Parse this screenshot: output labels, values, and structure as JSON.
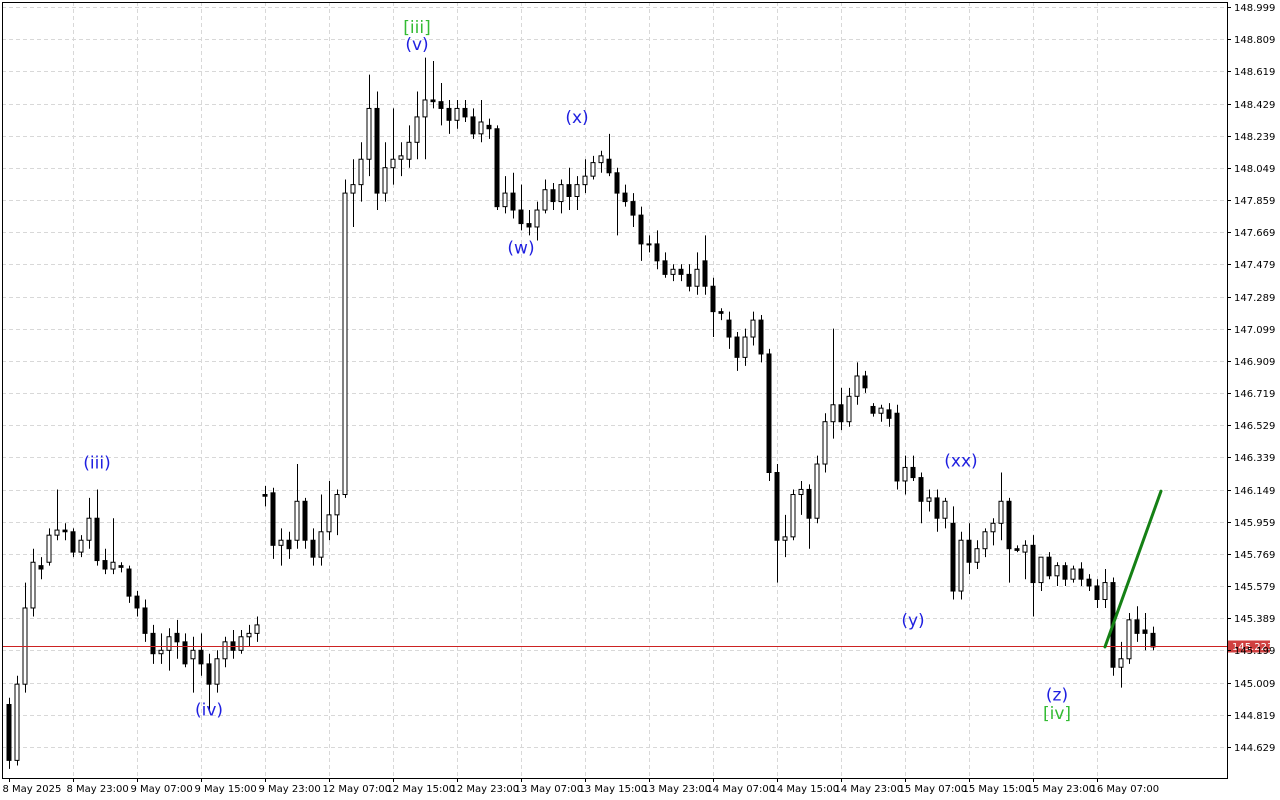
{
  "chart_data": {
    "type": "candlestick",
    "grid": true,
    "colors": {
      "background": "#ffffff",
      "grid": "#d8d8d8",
      "candle": "#000000",
      "bid_line": "#cc2222",
      "bid_tag": "#d04040",
      "primary_label": "#1f1fe0",
      "intermediate_label": "#33bb33",
      "forecast": "#158015"
    },
    "ylim": [
      144.5,
      149.0
    ],
    "y_ticks": [
      "148.999",
      "148.809",
      "148.619",
      "148.429",
      "148.239",
      "148.049",
      "147.859",
      "147.669",
      "147.479",
      "147.289",
      "147.099",
      "146.909",
      "146.719",
      "146.529",
      "146.339",
      "146.149",
      "145.959",
      "145.769",
      "145.579",
      "145.389",
      "145.199",
      "145.009",
      "144.819",
      "144.629"
    ],
    "x_ticks": [
      {
        "label": "8 May 2025",
        "index": 0
      },
      {
        "label": "8 May 23:00",
        "index": 8
      },
      {
        "label": "9 May 07:00",
        "index": 16
      },
      {
        "label": "9 May 15:00",
        "index": 24
      },
      {
        "label": "9 May 23:00",
        "index": 32
      },
      {
        "label": "12 May 07:00",
        "index": 40
      },
      {
        "label": "12 May 15:00",
        "index": 48
      },
      {
        "label": "12 May 23:00",
        "index": 56
      },
      {
        "label": "13 May 07:00",
        "index": 64
      },
      {
        "label": "13 May 15:00",
        "index": 72
      },
      {
        "label": "13 May 23:00",
        "index": 80
      },
      {
        "label": "14 May 07:00",
        "index": 88
      },
      {
        "label": "14 May 15:00",
        "index": 96
      },
      {
        "label": "14 May 23:00",
        "index": 104
      },
      {
        "label": "15 May 07:00",
        "index": 112
      },
      {
        "label": "15 May 15:00",
        "index": 120
      },
      {
        "label": "15 May 23:00",
        "index": 128
      },
      {
        "label": "16 May 07:00",
        "index": 136
      }
    ],
    "current_price": "145.223",
    "candles": [
      {
        "o": 144.88,
        "h": 144.92,
        "l": 144.5,
        "c": 144.55
      },
      {
        "o": 144.55,
        "h": 145.05,
        "l": 144.52,
        "c": 145.0
      },
      {
        "o": 145.0,
        "h": 145.6,
        "l": 144.95,
        "c": 145.45
      },
      {
        "o": 145.45,
        "h": 145.8,
        "l": 145.4,
        "c": 145.72
      },
      {
        "o": 145.7,
        "h": 145.75,
        "l": 145.62,
        "c": 145.68
      },
      {
        "o": 145.72,
        "h": 145.92,
        "l": 145.7,
        "c": 145.88
      },
      {
        "o": 145.88,
        "h": 146.15,
        "l": 145.85,
        "c": 145.91
      },
      {
        "o": 145.91,
        "h": 145.95,
        "l": 145.85,
        "c": 145.9
      },
      {
        "o": 145.9,
        "h": 145.92,
        "l": 145.75,
        "c": 145.78
      },
      {
        "o": 145.78,
        "h": 145.88,
        "l": 145.75,
        "c": 145.85
      },
      {
        "o": 145.85,
        "h": 146.1,
        "l": 145.8,
        "c": 145.98
      },
      {
        "o": 145.98,
        "h": 146.15,
        "l": 145.7,
        "c": 145.73
      },
      {
        "o": 145.73,
        "h": 145.8,
        "l": 145.65,
        "c": 145.68
      },
      {
        "o": 145.68,
        "h": 145.98,
        "l": 145.65,
        "c": 145.72
      },
      {
        "o": 145.7,
        "h": 145.72,
        "l": 145.66,
        "c": 145.69
      },
      {
        "o": 145.68,
        "h": 145.7,
        "l": 145.48,
        "c": 145.52
      },
      {
        "o": 145.52,
        "h": 145.55,
        "l": 145.4,
        "c": 145.45
      },
      {
        "o": 145.45,
        "h": 145.5,
        "l": 145.25,
        "c": 145.3
      },
      {
        "o": 145.3,
        "h": 145.35,
        "l": 145.12,
        "c": 145.18
      },
      {
        "o": 145.18,
        "h": 145.3,
        "l": 145.12,
        "c": 145.2
      },
      {
        "o": 145.2,
        "h": 145.33,
        "l": 145.08,
        "c": 145.28
      },
      {
        "o": 145.3,
        "h": 145.38,
        "l": 145.15,
        "c": 145.25
      },
      {
        "o": 145.25,
        "h": 145.3,
        "l": 145.1,
        "c": 145.12
      },
      {
        "o": 145.15,
        "h": 145.28,
        "l": 144.95,
        "c": 145.2
      },
      {
        "o": 145.2,
        "h": 145.3,
        "l": 145.05,
        "c": 145.12
      },
      {
        "o": 145.12,
        "h": 145.18,
        "l": 144.85,
        "c": 145.0
      },
      {
        "o": 145.0,
        "h": 145.2,
        "l": 144.95,
        "c": 145.15
      },
      {
        "o": 145.15,
        "h": 145.28,
        "l": 145.1,
        "c": 145.25
      },
      {
        "o": 145.25,
        "h": 145.32,
        "l": 145.15,
        "c": 145.2
      },
      {
        "o": 145.2,
        "h": 145.32,
        "l": 145.18,
        "c": 145.28
      },
      {
        "o": 145.28,
        "h": 145.35,
        "l": 145.22,
        "c": 145.3
      },
      {
        "o": 145.3,
        "h": 145.4,
        "l": 145.25,
        "c": 145.35
      },
      {
        "o": 146.12,
        "h": 146.17,
        "l": 146.05,
        "c": 146.11
      },
      {
        "o": 146.13,
        "h": 146.16,
        "l": 145.74,
        "c": 145.82
      },
      {
        "o": 145.82,
        "h": 145.92,
        "l": 145.7,
        "c": 145.85
      },
      {
        "o": 145.85,
        "h": 145.9,
        "l": 145.74,
        "c": 145.8
      },
      {
        "o": 145.85,
        "h": 146.3,
        "l": 145.8,
        "c": 146.08
      },
      {
        "o": 146.08,
        "h": 146.1,
        "l": 145.8,
        "c": 145.85
      },
      {
        "o": 145.85,
        "h": 145.92,
        "l": 145.7,
        "c": 145.75
      },
      {
        "o": 145.75,
        "h": 146.12,
        "l": 145.7,
        "c": 145.9
      },
      {
        "o": 145.9,
        "h": 146.2,
        "l": 145.85,
        "c": 146.0
      },
      {
        "o": 146.0,
        "h": 146.15,
        "l": 145.88,
        "c": 146.12
      },
      {
        "o": 146.12,
        "h": 147.98,
        "l": 146.1,
        "c": 147.9
      },
      {
        "o": 147.9,
        "h": 148.1,
        "l": 147.7,
        "c": 147.95
      },
      {
        "o": 147.95,
        "h": 148.2,
        "l": 147.85,
        "c": 148.1
      },
      {
        "o": 148.1,
        "h": 148.6,
        "l": 148.0,
        "c": 148.4
      },
      {
        "o": 148.4,
        "h": 148.5,
        "l": 147.8,
        "c": 147.9
      },
      {
        "o": 147.9,
        "h": 148.2,
        "l": 147.85,
        "c": 148.05
      },
      {
        "o": 148.05,
        "h": 148.4,
        "l": 147.95,
        "c": 148.1
      },
      {
        "o": 148.1,
        "h": 148.2,
        "l": 148.0,
        "c": 148.12
      },
      {
        "o": 148.1,
        "h": 148.3,
        "l": 148.05,
        "c": 148.2
      },
      {
        "o": 148.2,
        "h": 148.5,
        "l": 148.1,
        "c": 148.35
      },
      {
        "o": 148.35,
        "h": 148.7,
        "l": 148.1,
        "c": 148.45
      },
      {
        "o": 148.45,
        "h": 148.68,
        "l": 148.4,
        "c": 148.44
      },
      {
        "o": 148.44,
        "h": 148.55,
        "l": 148.3,
        "c": 148.4
      },
      {
        "o": 148.4,
        "h": 148.45,
        "l": 148.25,
        "c": 148.33
      },
      {
        "o": 148.33,
        "h": 148.45,
        "l": 148.28,
        "c": 148.4
      },
      {
        "o": 148.4,
        "h": 148.45,
        "l": 148.32,
        "c": 148.35
      },
      {
        "o": 148.35,
        "h": 148.4,
        "l": 148.22,
        "c": 148.25
      },
      {
        "o": 148.25,
        "h": 148.45,
        "l": 148.2,
        "c": 148.32
      },
      {
        "o": 148.3,
        "h": 148.34,
        "l": 148.22,
        "c": 148.28
      },
      {
        "o": 148.28,
        "h": 148.3,
        "l": 147.8,
        "c": 147.82
      },
      {
        "o": 147.82,
        "h": 148.0,
        "l": 147.78,
        "c": 147.9
      },
      {
        "o": 147.9,
        "h": 148.02,
        "l": 147.75,
        "c": 147.8
      },
      {
        "o": 147.8,
        "h": 147.95,
        "l": 147.68,
        "c": 147.72
      },
      {
        "o": 147.72,
        "h": 147.8,
        "l": 147.65,
        "c": 147.7
      },
      {
        "o": 147.7,
        "h": 147.85,
        "l": 147.62,
        "c": 147.8
      },
      {
        "o": 147.8,
        "h": 147.98,
        "l": 147.78,
        "c": 147.92
      },
      {
        "o": 147.92,
        "h": 147.96,
        "l": 147.8,
        "c": 147.85
      },
      {
        "o": 147.85,
        "h": 147.98,
        "l": 147.78,
        "c": 147.95
      },
      {
        "o": 147.95,
        "h": 148.05,
        "l": 147.8,
        "c": 147.88
      },
      {
        "o": 147.88,
        "h": 148.0,
        "l": 147.8,
        "c": 147.95
      },
      {
        "o": 147.95,
        "h": 148.1,
        "l": 147.9,
        "c": 148.0
      },
      {
        "o": 148.0,
        "h": 148.12,
        "l": 147.98,
        "c": 148.08
      },
      {
        "o": 148.08,
        "h": 148.15,
        "l": 148.02,
        "c": 148.12
      },
      {
        "o": 148.1,
        "h": 148.25,
        "l": 148.0,
        "c": 148.02
      },
      {
        "o": 148.02,
        "h": 148.05,
        "l": 147.65,
        "c": 147.9
      },
      {
        "o": 147.9,
        "h": 147.95,
        "l": 147.82,
        "c": 147.85
      },
      {
        "o": 147.85,
        "h": 147.9,
        "l": 147.7,
        "c": 147.77
      },
      {
        "o": 147.77,
        "h": 147.82,
        "l": 147.5,
        "c": 147.6
      },
      {
        "o": 147.6,
        "h": 147.65,
        "l": 147.55,
        "c": 147.6
      },
      {
        "o": 147.6,
        "h": 147.68,
        "l": 147.45,
        "c": 147.5
      },
      {
        "o": 147.5,
        "h": 147.55,
        "l": 147.4,
        "c": 147.42
      },
      {
        "o": 147.42,
        "h": 147.48,
        "l": 147.38,
        "c": 147.45
      },
      {
        "o": 147.45,
        "h": 147.48,
        "l": 147.38,
        "c": 147.42
      },
      {
        "o": 147.42,
        "h": 147.48,
        "l": 147.32,
        "c": 147.35
      },
      {
        "o": 147.35,
        "h": 147.55,
        "l": 147.3,
        "c": 147.45
      },
      {
        "o": 147.5,
        "h": 147.65,
        "l": 147.3,
        "c": 147.35
      },
      {
        "o": 147.35,
        "h": 147.4,
        "l": 147.05,
        "c": 147.2
      },
      {
        "o": 147.2,
        "h": 147.22,
        "l": 147.15,
        "c": 147.19
      },
      {
        "o": 147.15,
        "h": 147.2,
        "l": 146.98,
        "c": 147.05
      },
      {
        "o": 147.05,
        "h": 147.08,
        "l": 146.85,
        "c": 146.93
      },
      {
        "o": 146.93,
        "h": 147.1,
        "l": 146.88,
        "c": 147.05
      },
      {
        "o": 147.05,
        "h": 147.2,
        "l": 147.0,
        "c": 147.15
      },
      {
        "o": 147.15,
        "h": 147.18,
        "l": 146.9,
        "c": 146.95
      },
      {
        "o": 146.95,
        "h": 146.98,
        "l": 146.2,
        "c": 146.25
      },
      {
        "o": 146.25,
        "h": 146.3,
        "l": 145.6,
        "c": 145.85
      },
      {
        "o": 145.85,
        "h": 146.0,
        "l": 145.75,
        "c": 145.87
      },
      {
        "o": 145.87,
        "h": 146.15,
        "l": 145.85,
        "c": 146.12
      },
      {
        "o": 146.12,
        "h": 146.2,
        "l": 146.0,
        "c": 146.15
      },
      {
        "o": 146.15,
        "h": 146.18,
        "l": 145.8,
        "c": 145.98
      },
      {
        "o": 145.98,
        "h": 146.35,
        "l": 145.95,
        "c": 146.3
      },
      {
        "o": 146.3,
        "h": 146.6,
        "l": 146.25,
        "c": 146.55
      },
      {
        "o": 146.55,
        "h": 147.1,
        "l": 146.45,
        "c": 146.65
      },
      {
        "o": 146.65,
        "h": 146.75,
        "l": 146.5,
        "c": 146.55
      },
      {
        "o": 146.55,
        "h": 146.75,
        "l": 146.52,
        "c": 146.7
      },
      {
        "o": 146.7,
        "h": 146.9,
        "l": 146.65,
        "c": 146.82
      },
      {
        "o": 146.82,
        "h": 146.85,
        "l": 146.72,
        "c": 146.75
      },
      {
        "o": 146.64,
        "h": 146.66,
        "l": 146.58,
        "c": 146.6
      },
      {
        "o": 146.6,
        "h": 146.65,
        "l": 146.55,
        "c": 146.63
      },
      {
        "o": 146.62,
        "h": 146.66,
        "l": 146.52,
        "c": 146.57
      },
      {
        "o": 146.6,
        "h": 146.65,
        "l": 146.15,
        "c": 146.2
      },
      {
        "o": 146.2,
        "h": 146.35,
        "l": 146.12,
        "c": 146.28
      },
      {
        "o": 146.28,
        "h": 146.35,
        "l": 146.2,
        "c": 146.22
      },
      {
        "o": 146.22,
        "h": 146.25,
        "l": 145.95,
        "c": 146.08
      },
      {
        "o": 146.08,
        "h": 146.15,
        "l": 146.02,
        "c": 146.1
      },
      {
        "o": 146.1,
        "h": 146.15,
        "l": 145.9,
        "c": 145.98
      },
      {
        "o": 145.98,
        "h": 146.1,
        "l": 145.92,
        "c": 146.08
      },
      {
        "o": 145.95,
        "h": 146.05,
        "l": 145.5,
        "c": 145.55
      },
      {
        "o": 145.55,
        "h": 145.9,
        "l": 145.5,
        "c": 145.85
      },
      {
        "o": 145.85,
        "h": 145.95,
        "l": 145.65,
        "c": 145.72
      },
      {
        "o": 145.72,
        "h": 145.85,
        "l": 145.68,
        "c": 145.8
      },
      {
        "o": 145.8,
        "h": 145.92,
        "l": 145.75,
        "c": 145.9
      },
      {
        "o": 145.9,
        "h": 145.98,
        "l": 145.82,
        "c": 145.95
      },
      {
        "o": 145.95,
        "h": 146.25,
        "l": 145.85,
        "c": 146.08
      },
      {
        "o": 146.08,
        "h": 146.1,
        "l": 145.6,
        "c": 145.8
      },
      {
        "o": 145.8,
        "h": 145.82,
        "l": 145.78,
        "c": 145.79
      },
      {
        "o": 145.78,
        "h": 145.85,
        "l": 145.62,
        "c": 145.82
      },
      {
        "o": 145.82,
        "h": 145.88,
        "l": 145.4,
        "c": 145.6
      },
      {
        "o": 145.6,
        "h": 145.75,
        "l": 145.55,
        "c": 145.75
      },
      {
        "o": 145.75,
        "h": 145.78,
        "l": 145.62,
        "c": 145.64
      },
      {
        "o": 145.64,
        "h": 145.72,
        "l": 145.58,
        "c": 145.7
      },
      {
        "o": 145.7,
        "h": 145.72,
        "l": 145.58,
        "c": 145.62
      },
      {
        "o": 145.62,
        "h": 145.7,
        "l": 145.6,
        "c": 145.68
      },
      {
        "o": 145.68,
        "h": 145.72,
        "l": 145.58,
        "c": 145.62
      },
      {
        "o": 145.62,
        "h": 145.65,
        "l": 145.55,
        "c": 145.58
      },
      {
        "o": 145.58,
        "h": 145.62,
        "l": 145.45,
        "c": 145.5
      },
      {
        "o": 145.5,
        "h": 145.68,
        "l": 145.45,
        "c": 145.6
      },
      {
        "o": 145.6,
        "h": 145.63,
        "l": 145.05,
        "c": 145.1
      },
      {
        "o": 145.1,
        "h": 145.25,
        "l": 144.98,
        "c": 145.15
      },
      {
        "o": 145.15,
        "h": 145.42,
        "l": 145.12,
        "c": 145.38
      },
      {
        "o": 145.38,
        "h": 145.46,
        "l": 145.25,
        "c": 145.3
      },
      {
        "o": 145.32,
        "h": 145.42,
        "l": 145.2,
        "c": 145.3
      },
      {
        "o": 145.3,
        "h": 145.34,
        "l": 145.2,
        "c": 145.22
      }
    ],
    "wave_labels": [
      {
        "text": "(iii)",
        "index": 11,
        "price": 146.31,
        "color": "primary_label"
      },
      {
        "text": "(iv)",
        "index": 25,
        "price": 144.85,
        "color": "primary_label"
      },
      {
        "text": "[iii]",
        "index": 51,
        "price": 148.88,
        "color": "intermediate_label"
      },
      {
        "text": "(v)",
        "index": 51,
        "price": 148.78,
        "color": "primary_label"
      },
      {
        "text": "(w)",
        "index": 64,
        "price": 147.58,
        "color": "primary_label"
      },
      {
        "text": "(x)",
        "index": 71,
        "price": 148.35,
        "color": "primary_label"
      },
      {
        "text": "(y)",
        "index": 113,
        "price": 145.38,
        "color": "primary_label"
      },
      {
        "text": "(xx)",
        "index": 119,
        "price": 146.32,
        "color": "primary_label"
      },
      {
        "text": "(z)",
        "index": 131,
        "price": 144.94,
        "color": "primary_label"
      },
      {
        "text": "[iv]",
        "index": 131,
        "price": 144.83,
        "color": "intermediate_label"
      }
    ],
    "forecast_line": {
      "from": {
        "index": 137,
        "price": 145.22
      },
      "to": {
        "index": 144,
        "price": 146.14
      }
    }
  }
}
